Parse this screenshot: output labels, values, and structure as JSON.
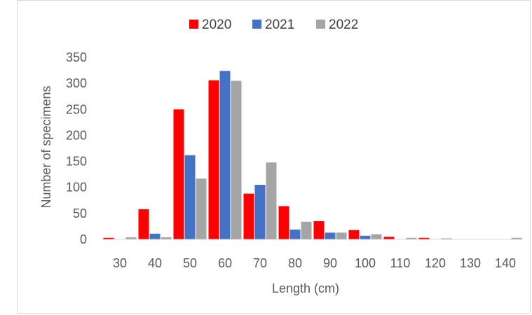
{
  "chart_data": {
    "type": "bar",
    "title": "",
    "xlabel": "Length (cm)",
    "ylabel": "Number of specimens",
    "categories": [
      "30",
      "40",
      "50",
      "60",
      "70",
      "80",
      "90",
      "100",
      "110",
      "120",
      "130",
      "140"
    ],
    "ylim": [
      0,
      350
    ],
    "yticks": [
      0,
      50,
      100,
      150,
      200,
      250,
      300,
      350
    ],
    "grid": false,
    "legend_position": "top",
    "series": [
      {
        "name": "2020",
        "color": "#ff0000",
        "values": [
          3,
          58,
          250,
          306,
          88,
          64,
          35,
          18,
          5,
          3,
          0,
          0
        ]
      },
      {
        "name": "2021",
        "color": "#4472c4",
        "values": [
          0,
          11,
          162,
          324,
          105,
          19,
          13,
          7,
          0,
          0,
          0,
          0
        ]
      },
      {
        "name": "2022",
        "color": "#a5a5a5",
        "values": [
          4,
          4,
          117,
          305,
          148,
          34,
          13,
          10,
          3,
          2,
          0,
          3
        ]
      }
    ]
  }
}
